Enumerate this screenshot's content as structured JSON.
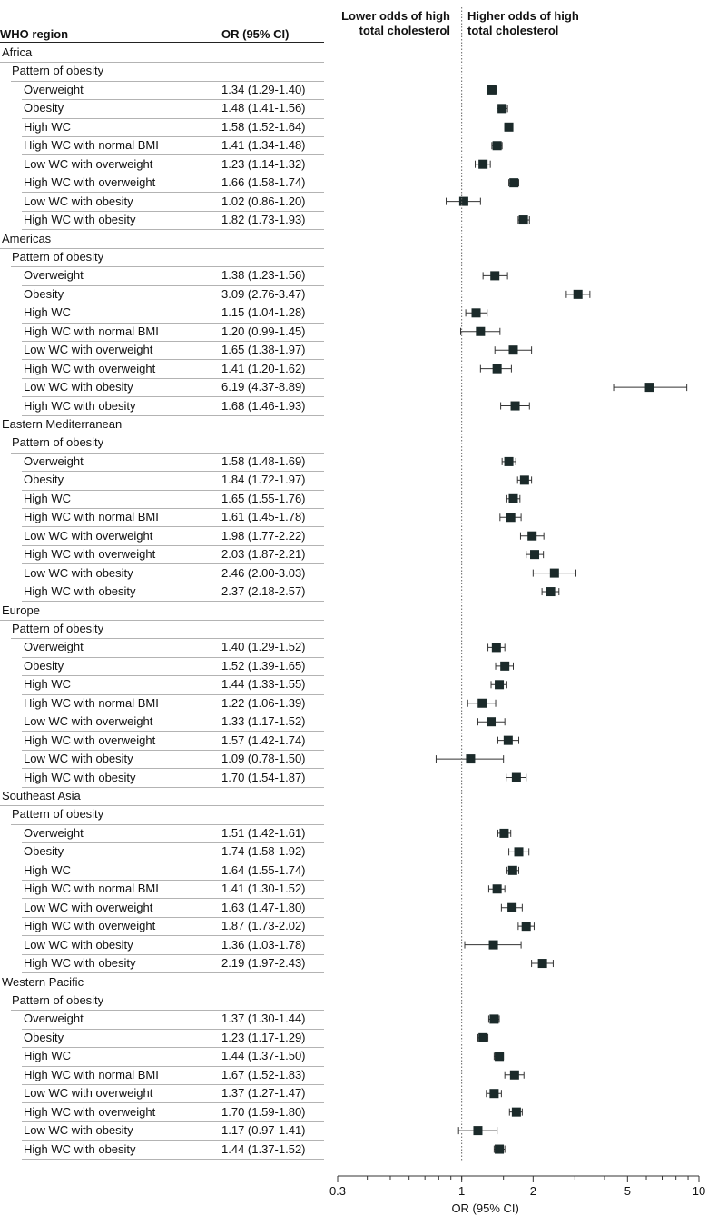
{
  "table": {
    "col_region": "WHO region",
    "col_or": "OR (95% CI)",
    "pattern_label": "Pattern of obesity"
  },
  "chart_data": {
    "type": "forest",
    "xlabel": "OR (95% CI)",
    "xscale": "log",
    "xlim": [
      0.3,
      10
    ],
    "xticks": [
      0.3,
      1,
      2,
      5,
      10
    ],
    "xtick_labels": [
      "0.3",
      "1",
      "2",
      "5",
      "10"
    ],
    "reference_line": 1,
    "left_annotation": "Lower odds of high total cholesterol",
    "right_annotation": "Higher odds of high total cholesterol",
    "regions": [
      {
        "name": "Africa",
        "rows": [
          {
            "label": "Overweight",
            "text": "1.34 (1.29-1.40)",
            "or": 1.34,
            "lo": 1.29,
            "hi": 1.4
          },
          {
            "label": "Obesity",
            "text": "1.48 (1.41-1.56)",
            "or": 1.48,
            "lo": 1.41,
            "hi": 1.56
          },
          {
            "label": "High WC",
            "text": "1.58 (1.52-1.64)",
            "or": 1.58,
            "lo": 1.52,
            "hi": 1.64
          },
          {
            "label": "High WC with normal BMI",
            "text": "1.41 (1.34-1.48)",
            "or": 1.41,
            "lo": 1.34,
            "hi": 1.48
          },
          {
            "label": "Low WC with overweight",
            "text": "1.23 (1.14-1.32)",
            "or": 1.23,
            "lo": 1.14,
            "hi": 1.32
          },
          {
            "label": "High WC with overweight",
            "text": "1.66 (1.58-1.74)",
            "or": 1.66,
            "lo": 1.58,
            "hi": 1.74
          },
          {
            "label": "Low WC with obesity",
            "text": "1.02 (0.86-1.20)",
            "or": 1.02,
            "lo": 0.86,
            "hi": 1.2
          },
          {
            "label": "High WC with obesity",
            "text": "1.82 (1.73-1.93)",
            "or": 1.82,
            "lo": 1.73,
            "hi": 1.93
          }
        ]
      },
      {
        "name": "Americas",
        "rows": [
          {
            "label": "Overweight",
            "text": "1.38 (1.23-1.56)",
            "or": 1.38,
            "lo": 1.23,
            "hi": 1.56
          },
          {
            "label": "Obesity",
            "text": "3.09 (2.76-3.47)",
            "or": 3.09,
            "lo": 2.76,
            "hi": 3.47
          },
          {
            "label": "High WC",
            "text": "1.15 (1.04-1.28)",
            "or": 1.15,
            "lo": 1.04,
            "hi": 1.28
          },
          {
            "label": "High WC with normal BMI",
            "text": "1.20 (0.99-1.45)",
            "or": 1.2,
            "lo": 0.99,
            "hi": 1.45
          },
          {
            "label": "Low WC with overweight",
            "text": "1.65 (1.38-1.97)",
            "or": 1.65,
            "lo": 1.38,
            "hi": 1.97
          },
          {
            "label": "High WC with overweight",
            "text": "1.41 (1.20-1.62)",
            "or": 1.41,
            "lo": 1.2,
            "hi": 1.62
          },
          {
            "label": "Low WC with obesity",
            "text": "6.19 (4.37-8.89)",
            "or": 6.19,
            "lo": 4.37,
            "hi": 8.89
          },
          {
            "label": "High WC with obesity",
            "text": "1.68 (1.46-1.93)",
            "or": 1.68,
            "lo": 1.46,
            "hi": 1.93
          }
        ]
      },
      {
        "name": "Eastern Mediterranean",
        "rows": [
          {
            "label": "Overweight",
            "text": "1.58 (1.48-1.69)",
            "or": 1.58,
            "lo": 1.48,
            "hi": 1.69
          },
          {
            "label": "Obesity",
            "text": "1.84 (1.72-1.97)",
            "or": 1.84,
            "lo": 1.72,
            "hi": 1.97
          },
          {
            "label": "High WC",
            "text": "1.65 (1.55-1.76)",
            "or": 1.65,
            "lo": 1.55,
            "hi": 1.76
          },
          {
            "label": "High WC with normal BMI",
            "text": "1.61 (1.45-1.78)",
            "or": 1.61,
            "lo": 1.45,
            "hi": 1.78
          },
          {
            "label": "Low WC with overweight",
            "text": "1.98 (1.77-2.22)",
            "or": 1.98,
            "lo": 1.77,
            "hi": 2.22
          },
          {
            "label": "High WC with overweight",
            "text": "2.03 (1.87-2.21)",
            "or": 2.03,
            "lo": 1.87,
            "hi": 2.21
          },
          {
            "label": "Low WC with obesity",
            "text": "2.46 (2.00-3.03)",
            "or": 2.46,
            "lo": 2.0,
            "hi": 3.03
          },
          {
            "label": "High WC with obesity",
            "text": "2.37 (2.18-2.57)",
            "or": 2.37,
            "lo": 2.18,
            "hi": 2.57
          }
        ]
      },
      {
        "name": "Europe",
        "rows": [
          {
            "label": "Overweight",
            "text": "1.40 (1.29-1.52)",
            "or": 1.4,
            "lo": 1.29,
            "hi": 1.52
          },
          {
            "label": "Obesity",
            "text": "1.52 (1.39-1.65)",
            "or": 1.52,
            "lo": 1.39,
            "hi": 1.65
          },
          {
            "label": "High WC",
            "text": "1.44 (1.33-1.55)",
            "or": 1.44,
            "lo": 1.33,
            "hi": 1.55
          },
          {
            "label": "High WC with normal BMI",
            "text": "1.22 (1.06-1.39)",
            "or": 1.22,
            "lo": 1.06,
            "hi": 1.39
          },
          {
            "label": "Low WC with overweight",
            "text": "1.33 (1.17-1.52)",
            "or": 1.33,
            "lo": 1.17,
            "hi": 1.52
          },
          {
            "label": "High WC with overweight",
            "text": "1.57 (1.42-1.74)",
            "or": 1.57,
            "lo": 1.42,
            "hi": 1.74
          },
          {
            "label": "Low WC with obesity",
            "text": "1.09 (0.78-1.50)",
            "or": 1.09,
            "lo": 0.78,
            "hi": 1.5
          },
          {
            "label": "High WC with obesity",
            "text": "1.70 (1.54-1.87)",
            "or": 1.7,
            "lo": 1.54,
            "hi": 1.87
          }
        ]
      },
      {
        "name": "Southeast Asia",
        "rows": [
          {
            "label": "Overweight",
            "text": "1.51 (1.42-1.61)",
            "or": 1.51,
            "lo": 1.42,
            "hi": 1.61
          },
          {
            "label": "Obesity",
            "text": "1.74 (1.58-1.92)",
            "or": 1.74,
            "lo": 1.58,
            "hi": 1.92
          },
          {
            "label": "High WC",
            "text": "1.64 (1.55-1.74)",
            "or": 1.64,
            "lo": 1.55,
            "hi": 1.74
          },
          {
            "label": "High WC with normal BMI",
            "text": "1.41 (1.30-1.52)",
            "or": 1.41,
            "lo": 1.3,
            "hi": 1.52
          },
          {
            "label": "Low WC with overweight",
            "text": "1.63 (1.47-1.80)",
            "or": 1.63,
            "lo": 1.47,
            "hi": 1.8
          },
          {
            "label": "High WC with overweight",
            "text": "1.87 (1.73-2.02)",
            "or": 1.87,
            "lo": 1.73,
            "hi": 2.02
          },
          {
            "label": "Low WC with obesity",
            "text": "1.36 (1.03-1.78)",
            "or": 1.36,
            "lo": 1.03,
            "hi": 1.78
          },
          {
            "label": "High WC with obesity",
            "text": "2.19 (1.97-2.43)",
            "or": 2.19,
            "lo": 1.97,
            "hi": 2.43
          }
        ]
      },
      {
        "name": "Western Pacific",
        "rows": [
          {
            "label": "Overweight",
            "text": "1.37 (1.30-1.44)",
            "or": 1.37,
            "lo": 1.3,
            "hi": 1.44
          },
          {
            "label": "Obesity",
            "text": "1.23 (1.17-1.29)",
            "or": 1.23,
            "lo": 1.17,
            "hi": 1.29
          },
          {
            "label": "High WC",
            "text": "1.44 (1.37-1.50)",
            "or": 1.44,
            "lo": 1.37,
            "hi": 1.5
          },
          {
            "label": "High WC with normal BMI",
            "text": "1.67 (1.52-1.83)",
            "or": 1.67,
            "lo": 1.52,
            "hi": 1.83
          },
          {
            "label": "Low WC with overweight",
            "text": "1.37 (1.27-1.47)",
            "or": 1.37,
            "lo": 1.27,
            "hi": 1.47
          },
          {
            "label": "High WC with overweight",
            "text": "1.70 (1.59-1.80)",
            "or": 1.7,
            "lo": 1.59,
            "hi": 1.8
          },
          {
            "label": "Low WC with obesity",
            "text": "1.17 (0.97-1.41)",
            "or": 1.17,
            "lo": 0.97,
            "hi": 1.41
          },
          {
            "label": "High WC with obesity",
            "text": "1.44 (1.37-1.52)",
            "or": 1.44,
            "lo": 1.37,
            "hi": 1.52
          }
        ]
      }
    ]
  }
}
